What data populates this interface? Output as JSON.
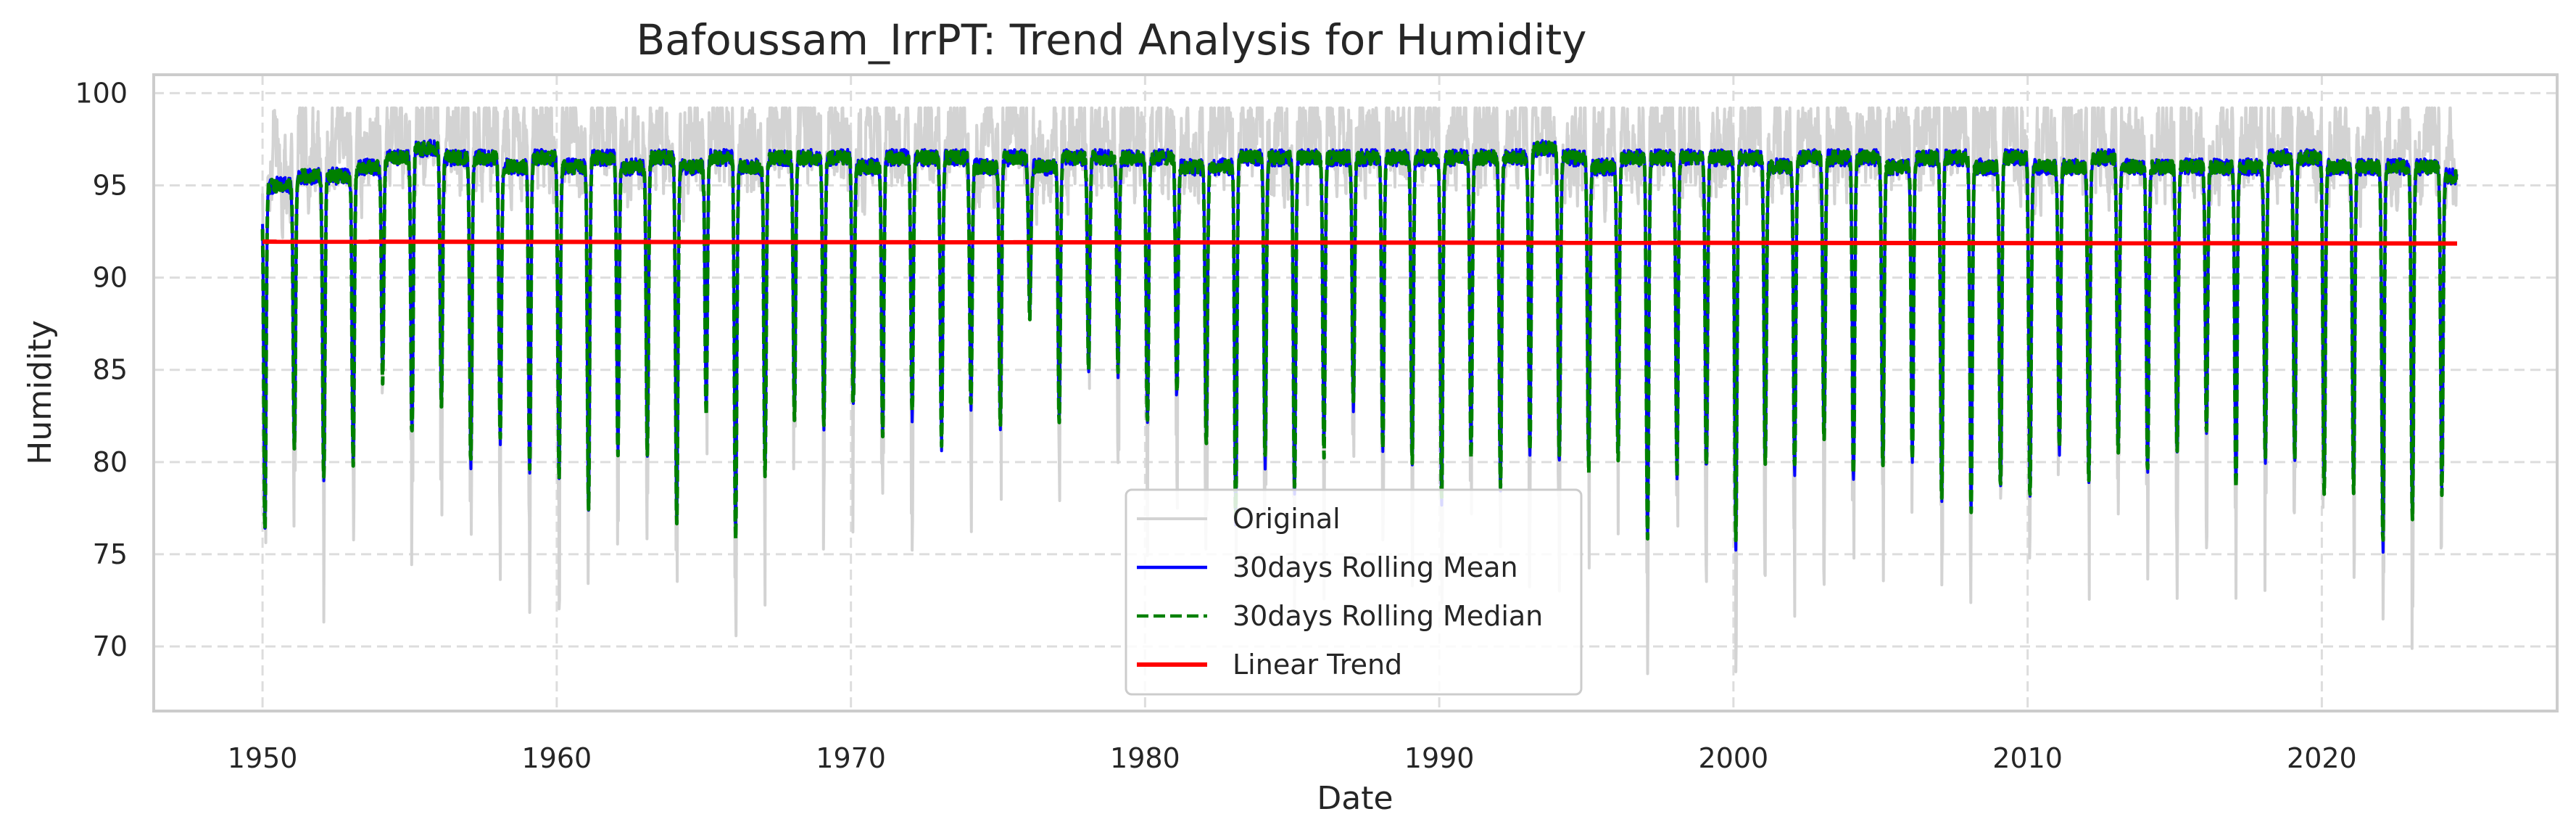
{
  "chart_data": {
    "type": "line",
    "title": "Bafoussam_IrrPT: Trend Analysis for Humidity",
    "xlabel": "Date",
    "ylabel": "Humidity",
    "xlim": [
      1946.3,
      2028.0
    ],
    "ylim": [
      66.5,
      101.0
    ],
    "x_ticks": [
      1950,
      1960,
      1970,
      1980,
      1990,
      2000,
      2010,
      2020
    ],
    "x_tick_labels": [
      "1950",
      "1960",
      "1970",
      "1980",
      "1990",
      "2000",
      "2010",
      "2020"
    ],
    "y_ticks": [
      70,
      75,
      80,
      85,
      90,
      95,
      100
    ],
    "y_tick_labels": [
      "70",
      "75",
      "80",
      "85",
      "90",
      "95",
      "100"
    ],
    "grid": true,
    "legend_position": "bottom-center",
    "x_range": [
      1950.0,
      2024.6
    ],
    "seasonal_cycle": "annual",
    "yearly_minima_30day": [
      76.5,
      80.5,
      79.0,
      80.0,
      84.5,
      81.5,
      83.0,
      80.0,
      81.0,
      79.5,
      79.0,
      77.5,
      80.5,
      80.5,
      76.8,
      82.5,
      76.0,
      79.5,
      82.5,
      82.0,
      83.0,
      81.5,
      82.5,
      81.0,
      83.0,
      82.0,
      88.0,
      82.0,
      85.0,
      85.0,
      82.0,
      83.5,
      81.0,
      77.0,
      80.0,
      78.5,
      80.5,
      83.0,
      80.5,
      80.0,
      78.0,
      80.5,
      78.5,
      80.5,
      80.0,
      79.5,
      80.0,
      76.0,
      79.5,
      79.5,
      75.5,
      80.0,
      79.5,
      81.0,
      79.0,
      79.5,
      80.0,
      78.0,
      77.5,
      78.5,
      78.0,
      80.5,
      79.0,
      80.5,
      79.5,
      80.5,
      81.5,
      78.5,
      80.0,
      80.0,
      78.5,
      78.5,
      75.5,
      77.0,
      78.5
    ],
    "yearly_maxima_30day": [
      95.0,
      95.5,
      95.5,
      96.0,
      96.5,
      97.0,
      96.5,
      96.5,
      96.0,
      96.5,
      96.0,
      96.5,
      96.0,
      96.5,
      96.0,
      96.5,
      96.0,
      96.5,
      96.5,
      96.5,
      96.0,
      96.5,
      96.5,
      96.5,
      96.0,
      96.5,
      96.0,
      96.5,
      96.5,
      96.5,
      96.5,
      96.0,
      96.0,
      96.5,
      96.5,
      96.5,
      96.5,
      96.5,
      96.5,
      96.5,
      96.5,
      96.5,
      96.5,
      97.0,
      96.5,
      96.0,
      96.5,
      96.5,
      96.5,
      96.5,
      96.5,
      96.0,
      96.5,
      96.5,
      96.5,
      96.0,
      96.5,
      96.5,
      96.0,
      96.5,
      96.0,
      96.0,
      96.5,
      96.0,
      96.0,
      96.0,
      96.0,
      96.0,
      96.5,
      96.5,
      96.0,
      96.0,
      96.0,
      96.0,
      95.5
    ],
    "linear_trend": {
      "x": [
        1950.0,
        2024.6
      ],
      "y": [
        91.95,
        91.85
      ]
    },
    "series": [
      {
        "name": "Original",
        "color": "#d3d3d3",
        "style": "solid"
      },
      {
        "name": "30days Rolling Mean",
        "color": "#0000ff",
        "style": "solid"
      },
      {
        "name": "30days Rolling Median",
        "color": "#008000",
        "style": "dashed"
      },
      {
        "name": "Linear Trend",
        "color": "#ff0000",
        "style": "solid"
      }
    ]
  }
}
